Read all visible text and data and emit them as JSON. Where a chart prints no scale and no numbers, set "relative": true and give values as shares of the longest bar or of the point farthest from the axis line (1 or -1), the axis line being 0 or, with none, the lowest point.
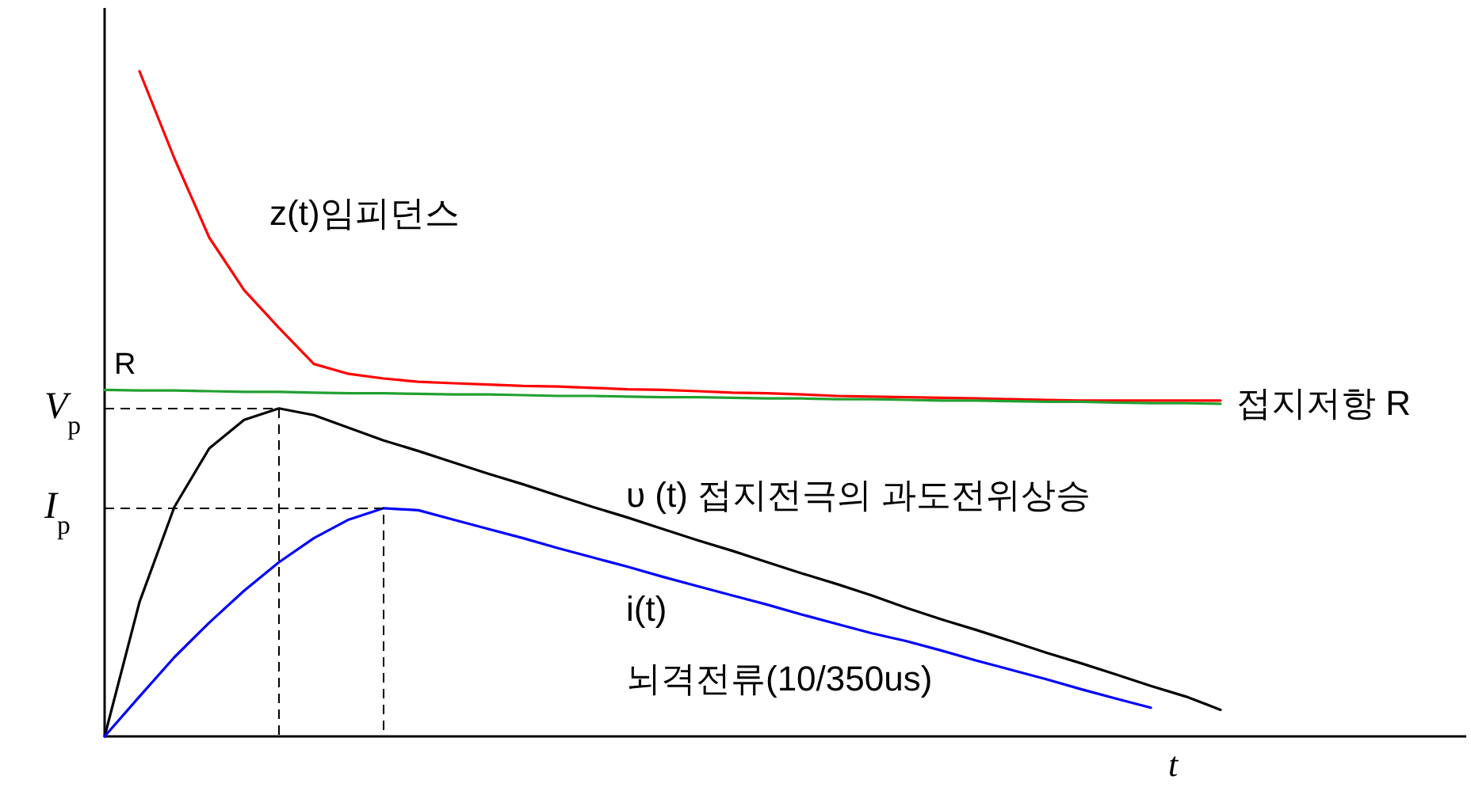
{
  "chart_data": {
    "type": "line",
    "relative": true,
    "xlabel": "t",
    "legend": false,
    "grid": false,
    "marker": "none",
    "line_style": "solid",
    "categories": [
      null,
      null,
      null,
      null,
      null,
      null,
      null,
      null,
      null,
      null,
      null,
      null,
      null,
      null,
      null,
      null,
      null,
      null,
      null,
      null,
      null,
      null,
      null,
      null,
      null,
      null,
      null,
      null,
      null,
      null,
      null,
      null,
      null
    ],
    "series": [
      {
        "name": "z(t)임피던스",
        "color": "#ff0000",
        "values": [
          null,
          1.0,
          0.869,
          0.75,
          0.671,
          0.614,
          0.56,
          0.545,
          0.538,
          0.533,
          0.531,
          0.529,
          0.527,
          0.526,
          0.524,
          0.522,
          0.521,
          0.519,
          0.517,
          0.516,
          0.514,
          0.512,
          0.511,
          0.51,
          0.509,
          0.508,
          0.507,
          0.506,
          0.505,
          0.505,
          0.505,
          0.505,
          0.505
        ]
      },
      {
        "name": "접지저항 R",
        "color": "#22a030",
        "values": [
          0.521,
          0.52,
          0.52,
          0.519,
          0.518,
          0.518,
          0.517,
          0.516,
          0.516,
          0.515,
          0.514,
          0.514,
          0.513,
          0.512,
          0.512,
          0.511,
          0.51,
          0.51,
          0.509,
          0.508,
          0.508,
          0.507,
          0.507,
          0.506,
          0.505,
          0.505,
          0.504,
          0.503,
          0.503,
          0.502,
          0.501,
          0.501,
          0.5
        ]
      },
      {
        "name": "υ (t) 접지전극의 과도전위상승",
        "color": "#000000",
        "values": [
          0,
          0.202,
          0.345,
          0.433,
          0.476,
          0.493,
          0.483,
          0.464,
          0.445,
          0.429,
          0.412,
          0.395,
          0.379,
          0.362,
          0.345,
          0.329,
          0.312,
          0.295,
          0.279,
          0.262,
          0.245,
          0.229,
          0.212,
          0.193,
          0.176,
          0.16,
          0.143,
          0.126,
          0.11,
          0.093,
          0.076,
          0.06,
          0.04
        ]
      },
      {
        "name": "i(t)\n뇌격전류(10/350us)",
        "color": "#0000ff",
        "values": [
          0,
          0.06,
          0.119,
          0.171,
          0.219,
          0.262,
          0.298,
          0.326,
          0.343,
          0.34,
          0.326,
          0.312,
          0.298,
          0.283,
          0.269,
          0.255,
          0.24,
          0.226,
          0.212,
          0.198,
          0.183,
          0.169,
          0.155,
          0.143,
          0.129,
          0.114,
          0.1,
          0.086,
          0.071,
          0.057,
          0.043,
          null,
          null
        ]
      }
    ],
    "annotations": [
      "R",
      "V$_{p}$",
      "I$_{p}$"
    ]
  }
}
